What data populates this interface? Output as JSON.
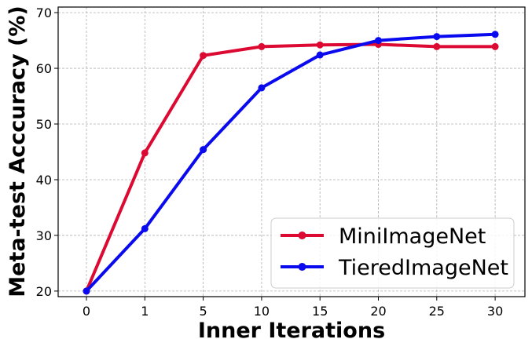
{
  "chart_data": {
    "type": "line",
    "title": "",
    "xlabel": "Inner Iterations",
    "ylabel": "Meta-test Acccuracy (%)",
    "categories": [
      "0",
      "1",
      "5",
      "10",
      "15",
      "20",
      "25",
      "30"
    ],
    "ylim": [
      19,
      71
    ],
    "yticks": [
      20,
      30,
      40,
      50,
      60,
      70
    ],
    "grid": true,
    "legend_position": "bottom-right",
    "series": [
      {
        "name": "MiniImageNet",
        "color": "#dc0a32",
        "values": [
          20.0,
          44.8,
          62.3,
          63.9,
          64.2,
          64.3,
          63.9,
          63.9
        ]
      },
      {
        "name": "TieredImageNet",
        "color": "#0a0aee",
        "values": [
          20.0,
          31.2,
          45.4,
          56.5,
          62.4,
          65.0,
          65.7,
          66.1
        ]
      }
    ]
  }
}
